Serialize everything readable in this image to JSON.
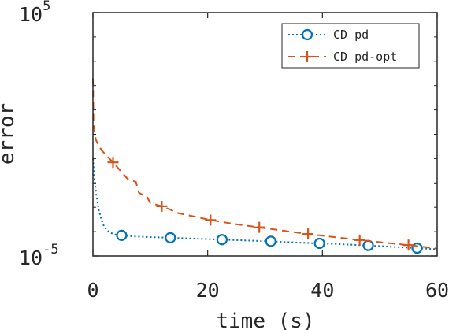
{
  "chart_data": {
    "type": "line",
    "xlabel": "time (s)",
    "ylabel": "error",
    "xlim": [
      0,
      60
    ],
    "ylim": [
      1e-05,
      100000.0
    ],
    "yscale": "log",
    "grid": false,
    "legend_position": "top-right",
    "x_ticks": [
      0,
      20,
      40,
      60
    ],
    "x_tick_labels": [
      "0",
      "20",
      "40",
      "60"
    ],
    "y_ticks": [
      1e-05,
      100000.0
    ],
    "y_tick_labels": [
      {
        "base": "10",
        "exp": "-5"
      },
      {
        "base": "10",
        "exp": "5"
      }
    ],
    "series": [
      {
        "name": "CD pd",
        "color": "#0072BD",
        "line_style": "dotted",
        "marker": "circle",
        "x": [
          0,
          0.2,
          0.6,
          1,
          1.5,
          2,
          3,
          4,
          5,
          8,
          13.5,
          18,
          22.5,
          27,
          31,
          35,
          39.5,
          44,
          48,
          52,
          56.5,
          60
        ],
        "y": [
          0.1,
          0.02,
          0.003,
          0.0008,
          0.0003,
          0.00015,
          9e-05,
          7.5e-05,
          7e-05,
          6.2e-05,
          5.6e-05,
          5.1e-05,
          4.7e-05,
          4.3e-05,
          4e-05,
          3.6e-05,
          3.3e-05,
          3e-05,
          2.7e-05,
          2.4e-05,
          2.1e-05,
          1.9e-05
        ],
        "markers_x": [
          5,
          13.5,
          22.5,
          31,
          39.5,
          48,
          56.5
        ]
      },
      {
        "name": "CD pd-opt",
        "color": "#D95319",
        "line_style": "dashed",
        "marker": "plus",
        "x": [
          0,
          0.1,
          0.5,
          1.5,
          3.5,
          6,
          7.5,
          8,
          9.5,
          10,
          12,
          13.5,
          14.5,
          18,
          20.5,
          25,
          29,
          33,
          37.5,
          42,
          46.5,
          51,
          55,
          58,
          60
        ],
        "y": [
          200,
          3,
          0.6,
          0.22,
          0.07,
          0.015,
          0.011,
          0.004,
          0.0025,
          0.0015,
          0.0011,
          0.0008,
          0.0006,
          0.0004,
          0.0003,
          0.0002,
          0.00015,
          0.00011,
          8e-05,
          6e-05,
          4.5e-05,
          3.5e-05,
          2.8e-05,
          2.3e-05,
          2e-05
        ],
        "markers_x": [
          3.5,
          12,
          20.5,
          29,
          37.5,
          46.5,
          55
        ]
      }
    ]
  }
}
